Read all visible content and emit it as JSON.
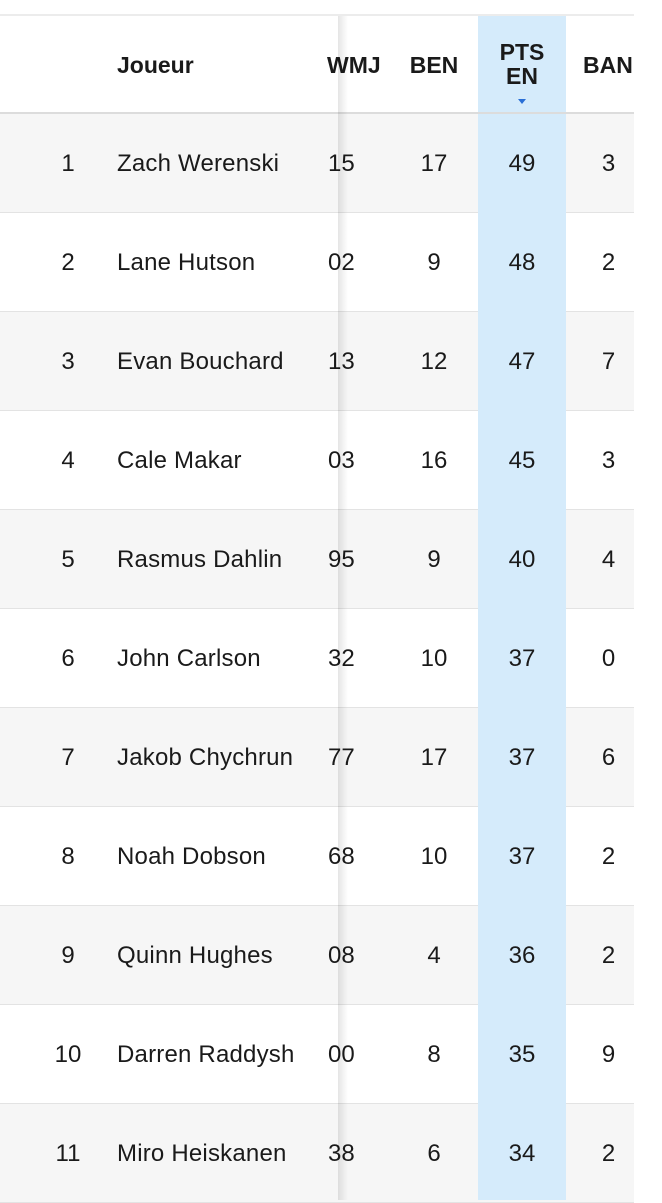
{
  "header": {
    "player": "Joueur",
    "wmj": "WMJ",
    "ben": "BEN",
    "pts_line1": "PTS",
    "pts_line2": "EN",
    "ban": "BAN"
  },
  "colors": {
    "sorted_column": "#d5ebfb",
    "sort_arrow": "#2a6fd6",
    "row_alt": "#f6f6f6"
  },
  "sort": {
    "column": "PTS EN",
    "direction": "descending",
    "icon": "sort-down-icon"
  },
  "rows": [
    {
      "rank": "1",
      "name": "Zach Werenski",
      "wmj": "15",
      "ben": "17",
      "pts": "49",
      "ban": "3"
    },
    {
      "rank": "2",
      "name": "Lane Hutson",
      "wmj": "02",
      "ben": "9",
      "pts": "48",
      "ban": "2"
    },
    {
      "rank": "3",
      "name": "Evan Bouchard",
      "wmj": "13",
      "ben": "12",
      "pts": "47",
      "ban": "7"
    },
    {
      "rank": "4",
      "name": "Cale Makar",
      "wmj": "03",
      "ben": "16",
      "pts": "45",
      "ban": "3"
    },
    {
      "rank": "5",
      "name": "Rasmus Dahlin",
      "wmj": "95",
      "ben": "9",
      "pts": "40",
      "ban": "4"
    },
    {
      "rank": "6",
      "name": "John Carlson",
      "wmj": "32",
      "ben": "10",
      "pts": "37",
      "ban": "0"
    },
    {
      "rank": "7",
      "name": "Jakob Chychrun",
      "wmj": "77",
      "ben": "17",
      "pts": "37",
      "ban": "6"
    },
    {
      "rank": "8",
      "name": "Noah Dobson",
      "wmj": "68",
      "ben": "10",
      "pts": "37",
      "ban": "2"
    },
    {
      "rank": "9",
      "name": "Quinn Hughes",
      "wmj": "08",
      "ben": "4",
      "pts": "36",
      "ban": "2"
    },
    {
      "rank": "10",
      "name": "Darren Raddysh",
      "wmj": "00",
      "ben": "8",
      "pts": "35",
      "ban": "9"
    },
    {
      "rank": "11",
      "name": "Miro Heiskanen",
      "wmj": "38",
      "ben": "6",
      "pts": "34",
      "ban": "2"
    }
  ]
}
